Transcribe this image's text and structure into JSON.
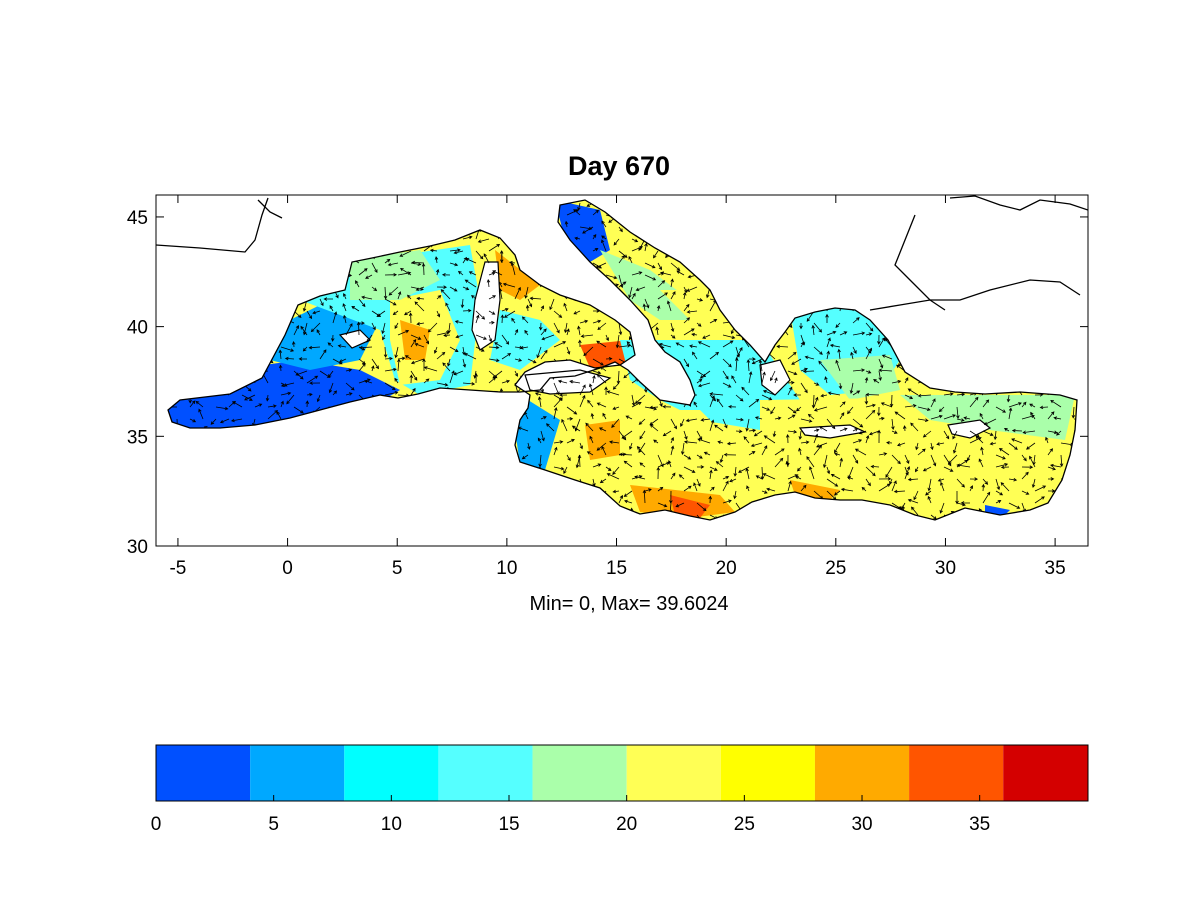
{
  "title": "Day  670",
  "stats": "Min= 0,  Max= 39.6024",
  "map": {
    "lon_range": [
      -6,
      36.5
    ],
    "lat_range": [
      30,
      46
    ],
    "x_ticks": [
      "-5",
      "0",
      "5",
      "10",
      "15",
      "20",
      "25",
      "30",
      "35"
    ],
    "y_ticks": [
      "30",
      "35",
      "40",
      "45"
    ],
    "x_tick_values": [
      -5,
      0,
      5,
      10,
      15,
      20,
      25,
      30,
      35
    ],
    "y_tick_values": [
      30,
      35,
      40,
      45
    ]
  },
  "colorbar": {
    "range": [
      0,
      39.6024
    ],
    "tick_values": [
      0,
      5,
      10,
      15,
      20,
      25,
      30,
      35
    ],
    "tick_labels": [
      "0",
      "5",
      "10",
      "15",
      "20",
      "25",
      "30",
      "35"
    ],
    "bins": [
      {
        "from": 0,
        "to": 4,
        "color": "#0050ff"
      },
      {
        "from": 4,
        "to": 8,
        "color": "#00a8ff"
      },
      {
        "from": 8,
        "to": 12,
        "color": "#00ffff"
      },
      {
        "from": 12,
        "to": 16,
        "color": "#55ffff"
      },
      {
        "from": 16,
        "to": 20,
        "color": "#aaffaa"
      },
      {
        "from": 20,
        "to": 24,
        "color": "#ffff55"
      },
      {
        "from": 24,
        "to": 28,
        "color": "#ffff00"
      },
      {
        "from": 28,
        "to": 32,
        "color": "#ffaa00"
      },
      {
        "from": 32,
        "to": 36,
        "color": "#ff5500"
      },
      {
        "from": 36,
        "to": 39.6024,
        "color": "#d40000"
      }
    ]
  }
}
